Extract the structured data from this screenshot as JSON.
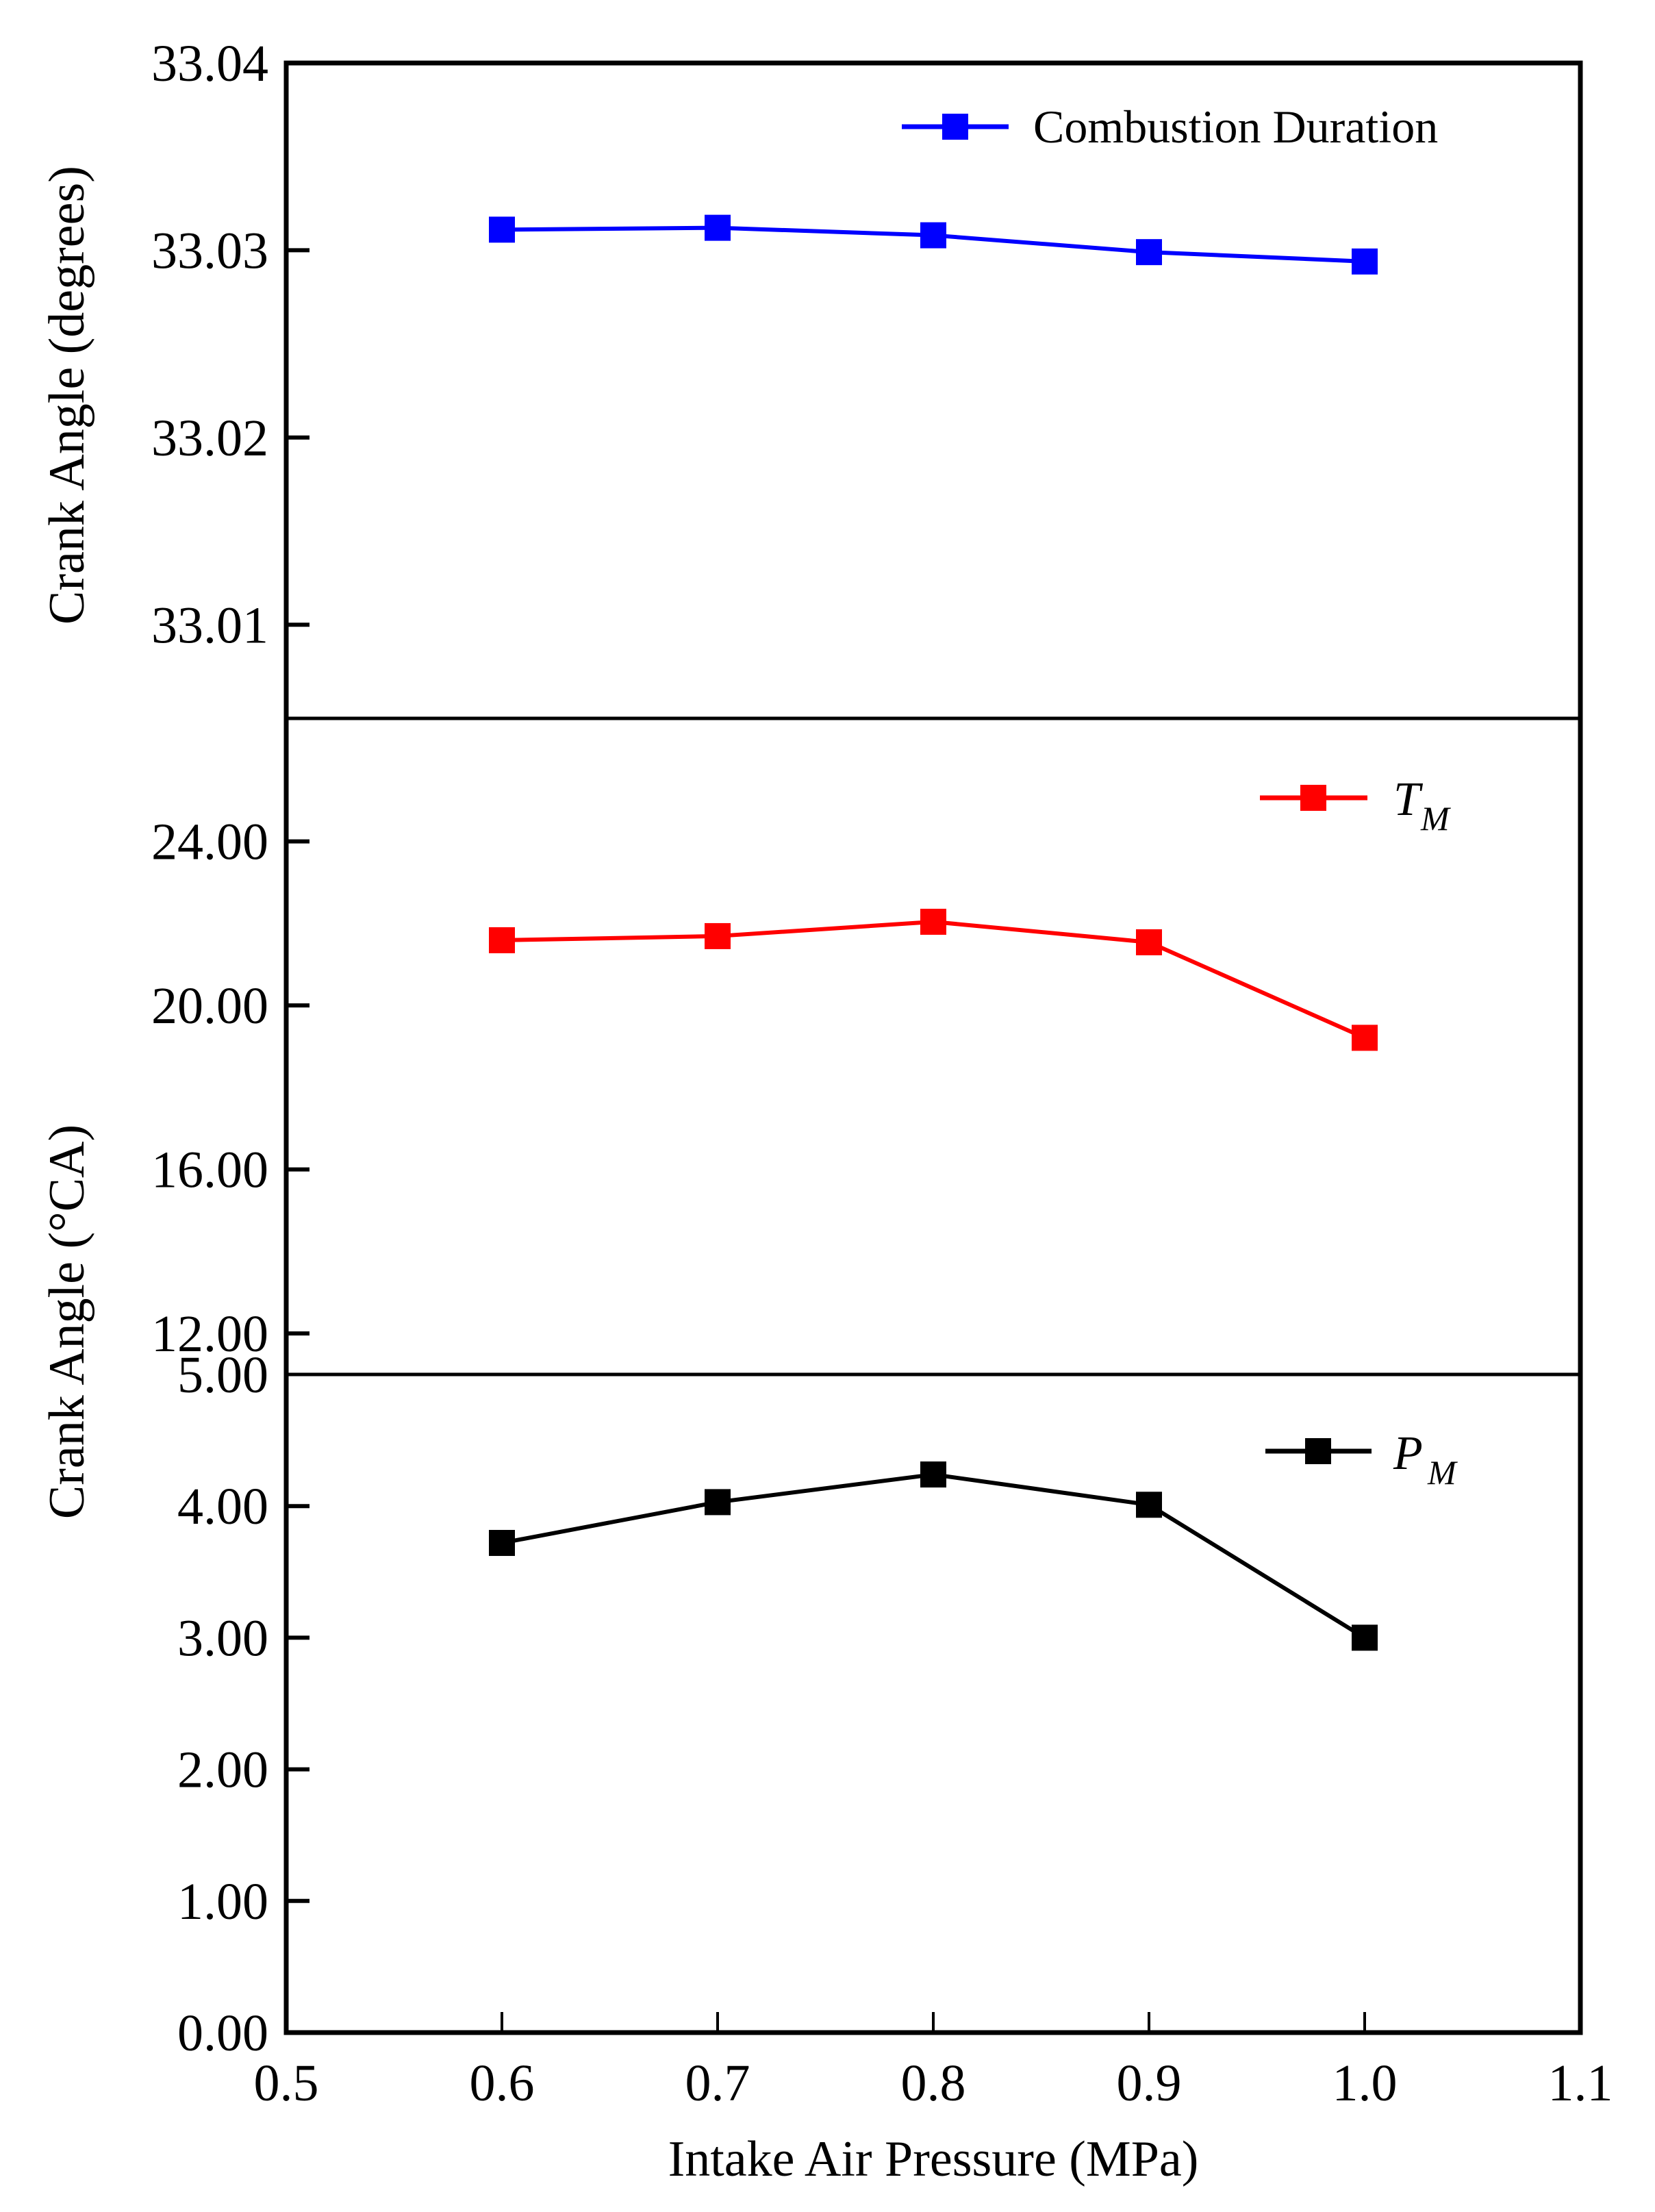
{
  "chart_data": {
    "type": "line",
    "layout": "three vertically stacked panels sharing one x-axis",
    "x": [
      0.6,
      0.7,
      0.8,
      0.9,
      1.0
    ],
    "xlabel": "Intake Air Pressure (MPa)",
    "xlim": [
      0.5,
      1.1
    ],
    "xticks": [
      "0.5",
      "0.6",
      "0.7",
      "0.8",
      "0.9",
      "1.0",
      "1.1"
    ],
    "grid": false,
    "panels": [
      {
        "id": "top",
        "ylabel": "Crank Angle (degrees)",
        "ylim": [
          33.005,
          33.04
        ],
        "yticks": [
          "33.04",
          "33.03",
          "33.02",
          "33.01"
        ],
        "ytick_values": [
          33.04,
          33.03,
          33.02,
          33.01
        ],
        "legend_position": "upper right",
        "series": [
          {
            "name": "Combustion Duration",
            "color": "#0000ff",
            "marker": "square",
            "values": [
              33.0311,
              33.0312,
              33.0308,
              33.0299,
              33.0294
            ]
          }
        ]
      },
      {
        "id": "middle",
        "ylabel": "",
        "ylim": [
          11,
          27
        ],
        "yticks": [
          "24.00",
          "20.00",
          "16.00",
          "12.00"
        ],
        "ytick_values": [
          24,
          20,
          16,
          12
        ],
        "legend_position": "upper right",
        "series": [
          {
            "name": "T_M",
            "label_main": "T",
            "label_sub": "M",
            "color": "#ff0000",
            "marker": "square",
            "values": [
              21.59,
              21.69,
              22.04,
              21.54,
              19.21
            ]
          }
        ]
      },
      {
        "id": "bottom",
        "ylabel": "",
        "ylim": [
          0,
          5
        ],
        "yticks": [
          "5.00",
          "4.00",
          "3.00",
          "2.00",
          "1.00",
          "0.00"
        ],
        "ytick_values": [
          5,
          4,
          3,
          2,
          1,
          0
        ],
        "legend_position": "upper right",
        "series": [
          {
            "name": "P_M",
            "label_main": "P",
            "label_sub": "M",
            "color": "#000000",
            "marker": "square",
            "values": [
              3.72,
              4.03,
              4.24,
              4.01,
              3.0
            ]
          }
        ]
      }
    ],
    "shared_ylabels": [
      {
        "text": "Crank Angle (degrees)",
        "spans": "top panel"
      },
      {
        "text": "Crank Angle (°CA)",
        "spans": "middle and bottom panels"
      }
    ]
  },
  "labels": {
    "ylabel_top": "Crank Angle (degrees)",
    "ylabel_lower": "Crank Angle (°CA)",
    "xlabel": "Intake Air Pressure (MPa)",
    "legend_top": "Combustion Duration",
    "legend_mid_main": "T",
    "legend_mid_sub": "M",
    "legend_bot_main": "P",
    "legend_bot_sub": "M"
  }
}
